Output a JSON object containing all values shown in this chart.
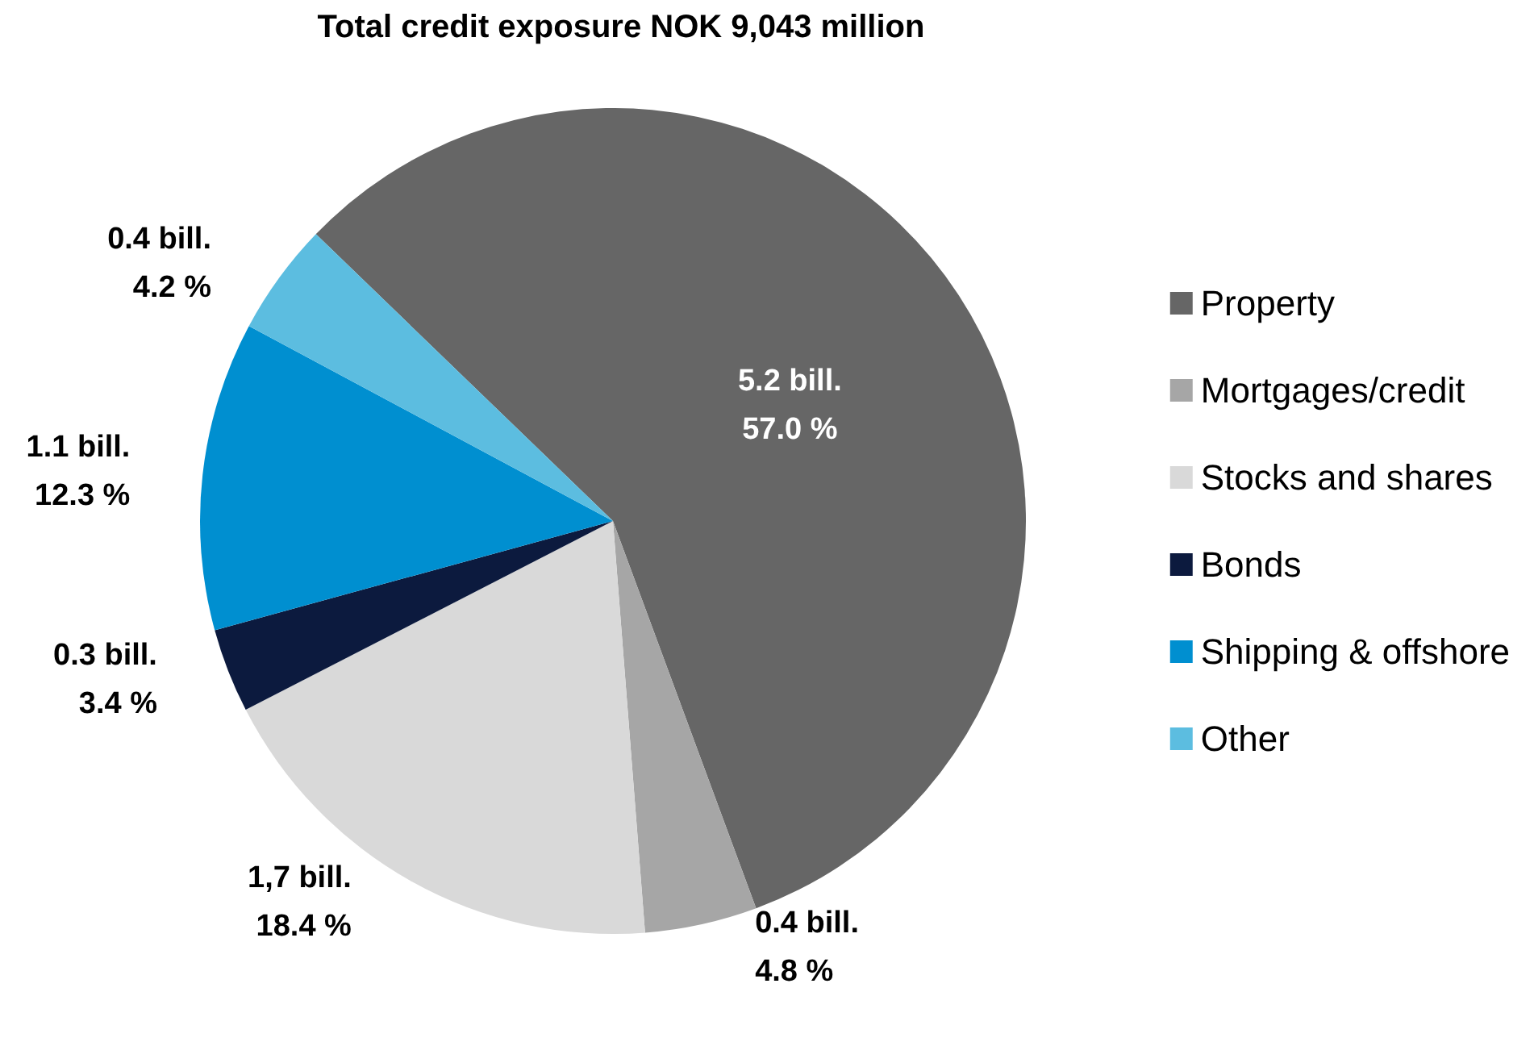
{
  "chart_data": {
    "type": "pie",
    "title": "Total credit exposure NOK 9,043 million",
    "categories": [
      "Property",
      "Mortgages/credit",
      "Stocks and shares",
      "Bonds",
      "Shipping & offshore",
      "Other"
    ],
    "values": [
      5.2,
      0.4,
      1.7,
      0.3,
      1.1,
      0.4
    ],
    "value_labels": [
      "5.2 bill.\n57.0 %",
      "0.4 bill.\n4.8 %",
      "1,7 bill.\n18.4 %",
      "0.3 bill.\n3.4 %",
      "1.1 bill.\n12.3 %",
      "0.4 bill.\n4.2 %"
    ],
    "colors": [
      "#666666",
      "#a6a6a6",
      "#d9d9d9",
      "#0c1a3e",
      "#008fd0",
      "#5cbde0"
    ],
    "legend": "right"
  }
}
